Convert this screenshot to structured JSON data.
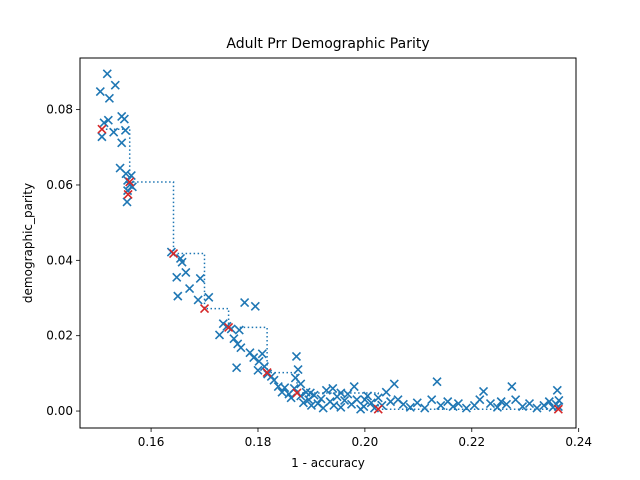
{
  "chart_data": {
    "type": "scatter",
    "title": "Adult Prr Demographic Parity",
    "xlabel": "1 - accuracy",
    "ylabel": "demographic_parity",
    "xlim": [
      0.1467,
      0.2395
    ],
    "ylim": [
      -0.0045,
      0.0937
    ],
    "xticks": [
      0.16,
      0.18,
      0.2,
      0.22,
      0.24
    ],
    "xtick_labels": [
      "0.16",
      "0.18",
      "0.20",
      "0.22",
      "0.24"
    ],
    "yticks": [
      0.0,
      0.02,
      0.04,
      0.06,
      0.08
    ],
    "ytick_labels": [
      "0.00",
      "0.02",
      "0.04",
      "0.06",
      "0.08"
    ],
    "grid": false,
    "series": [
      {
        "marker": "x",
        "color": "#1f77b4",
        "points": [
          [
            0.1505,
            0.0848
          ],
          [
            0.1518,
            0.0895
          ],
          [
            0.1533,
            0.0865
          ],
          [
            0.1522,
            0.083
          ],
          [
            0.1508,
            0.0728
          ],
          [
            0.1512,
            0.0765
          ],
          [
            0.152,
            0.0772
          ],
          [
            0.153,
            0.074
          ],
          [
            0.1545,
            0.0782
          ],
          [
            0.155,
            0.0775
          ],
          [
            0.1552,
            0.0745
          ],
          [
            0.1545,
            0.0712
          ],
          [
            0.1542,
            0.0645
          ],
          [
            0.1553,
            0.063
          ],
          [
            0.1556,
            0.0612
          ],
          [
            0.156,
            0.06
          ],
          [
            0.1563,
            0.0625
          ],
          [
            0.1556,
            0.0585
          ],
          [
            0.1555,
            0.0555
          ],
          [
            0.1565,
            0.0595
          ],
          [
            0.1638,
            0.0422
          ],
          [
            0.1648,
            0.0355
          ],
          [
            0.1655,
            0.0405
          ],
          [
            0.1658,
            0.0395
          ],
          [
            0.1665,
            0.0368
          ],
          [
            0.165,
            0.0305
          ],
          [
            0.1672,
            0.0325
          ],
          [
            0.1688,
            0.0295
          ],
          [
            0.1692,
            0.0352
          ],
          [
            0.1708,
            0.0302
          ],
          [
            0.1728,
            0.0202
          ],
          [
            0.1735,
            0.0232
          ],
          [
            0.1742,
            0.0225
          ],
          [
            0.175,
            0.0218
          ],
          [
            0.1755,
            0.0192
          ],
          [
            0.1762,
            0.0178
          ],
          [
            0.1768,
            0.0168
          ],
          [
            0.176,
            0.0115
          ],
          [
            0.1765,
            0.0215
          ],
          [
            0.1775,
            0.0288
          ],
          [
            0.1795,
            0.0278
          ],
          [
            0.1792,
            0.0142
          ],
          [
            0.1802,
            0.0132
          ],
          [
            0.1808,
            0.0152
          ],
          [
            0.1812,
            0.0118
          ],
          [
            0.1818,
            0.0098
          ],
          [
            0.1825,
            0.0092
          ],
          [
            0.183,
            0.0082
          ],
          [
            0.1838,
            0.0065
          ],
          [
            0.1845,
            0.005
          ],
          [
            0.185,
            0.0062
          ],
          [
            0.1858,
            0.0045
          ],
          [
            0.1862,
            0.0035
          ],
          [
            0.1868,
            0.006
          ],
          [
            0.1872,
            0.0145
          ],
          [
            0.1875,
            0.011
          ],
          [
            0.188,
            0.004
          ],
          [
            0.1885,
            0.0022
          ],
          [
            0.189,
            0.005
          ],
          [
            0.1895,
            0.003
          ],
          [
            0.19,
            0.0015
          ],
          [
            0.1905,
            0.0042
          ],
          [
            0.1912,
            0.002
          ],
          [
            0.1918,
            0.0032
          ],
          [
            0.1922,
            0.0008
          ],
          [
            0.1928,
            0.0055
          ],
          [
            0.1935,
            0.0025
          ],
          [
            0.1942,
            0.0015
          ],
          [
            0.1948,
            0.0038
          ],
          [
            0.1955,
            0.001
          ],
          [
            0.1962,
            0.0028
          ],
          [
            0.1968,
            0.0045
          ],
          [
            0.1975,
            0.0018
          ],
          [
            0.198,
            0.0065
          ],
          [
            0.1985,
            0.003
          ],
          [
            0.1992,
            0.0005
          ],
          [
            0.1998,
            0.0012
          ],
          [
            0.2005,
            0.004
          ],
          [
            0.2012,
            0.0022
          ],
          [
            0.2018,
            0.0008
          ],
          [
            0.2025,
            0.0035
          ],
          [
            0.2032,
            0.0015
          ],
          [
            0.204,
            0.005
          ],
          [
            0.2048,
            0.0025
          ],
          [
            0.2055,
            0.0072
          ],
          [
            0.2062,
            0.003
          ],
          [
            0.2072,
            0.0018
          ],
          [
            0.2085,
            0.001
          ],
          [
            0.2098,
            0.0022
          ],
          [
            0.2112,
            0.0008
          ],
          [
            0.2125,
            0.003
          ],
          [
            0.2135,
            0.0078
          ],
          [
            0.2142,
            0.0015
          ],
          [
            0.2155,
            0.0025
          ],
          [
            0.2165,
            0.0012
          ],
          [
            0.2175,
            0.002
          ],
          [
            0.219,
            0.0008
          ],
          [
            0.2205,
            0.0015
          ],
          [
            0.2215,
            0.003
          ],
          [
            0.2222,
            0.0052
          ],
          [
            0.2235,
            0.002
          ],
          [
            0.2248,
            0.001
          ],
          [
            0.2255,
            0.0025
          ],
          [
            0.2265,
            0.0018
          ],
          [
            0.2275,
            0.0065
          ],
          [
            0.2282,
            0.003
          ],
          [
            0.2295,
            0.0012
          ],
          [
            0.2308,
            0.002
          ],
          [
            0.2322,
            0.0008
          ],
          [
            0.2335,
            0.0015
          ],
          [
            0.2345,
            0.0025
          ],
          [
            0.2352,
            0.001
          ],
          [
            0.2358,
            0.0018
          ],
          [
            0.236,
            0.0055
          ],
          [
            0.2362,
            0.0012
          ],
          [
            0.2363,
            0.0028
          ],
          [
            0.188,
            0.0072
          ],
          [
            0.187,
            0.0088
          ],
          [
            0.1898,
            0.0048
          ],
          [
            0.194,
            0.006
          ],
          [
            0.1955,
            0.0048
          ],
          [
            0.2,
            0.003
          ],
          [
            0.1785,
            0.0155
          ],
          [
            0.18,
            0.0108
          ]
        ]
      },
      {
        "marker": "x",
        "color": "#d62728",
        "points": [
          [
            0.1508,
            0.0748
          ],
          [
            0.156,
            0.0608
          ],
          [
            0.1557,
            0.0575
          ],
          [
            0.1642,
            0.0418
          ],
          [
            0.17,
            0.0272
          ],
          [
            0.1745,
            0.0222
          ],
          [
            0.1817,
            0.0102
          ],
          [
            0.1873,
            0.0048
          ],
          [
            0.2025,
            0.0005
          ],
          [
            0.2362,
            0.0005
          ]
        ]
      }
    ],
    "frontier": {
      "style": "dotted",
      "color": "#1f77b4",
      "steps": [
        [
          0.1508,
          0.0748
        ],
        [
          0.156,
          0.0748
        ],
        [
          0.156,
          0.0608
        ],
        [
          0.1642,
          0.0608
        ],
        [
          0.1642,
          0.0418
        ],
        [
          0.17,
          0.0418
        ],
        [
          0.17,
          0.0272
        ],
        [
          0.1745,
          0.0272
        ],
        [
          0.1745,
          0.0222
        ],
        [
          0.1817,
          0.0222
        ],
        [
          0.1817,
          0.0102
        ],
        [
          0.1873,
          0.0102
        ],
        [
          0.1873,
          0.0048
        ],
        [
          0.2025,
          0.0048
        ],
        [
          0.2025,
          0.0005
        ],
        [
          0.2362,
          0.0005
        ]
      ]
    }
  }
}
